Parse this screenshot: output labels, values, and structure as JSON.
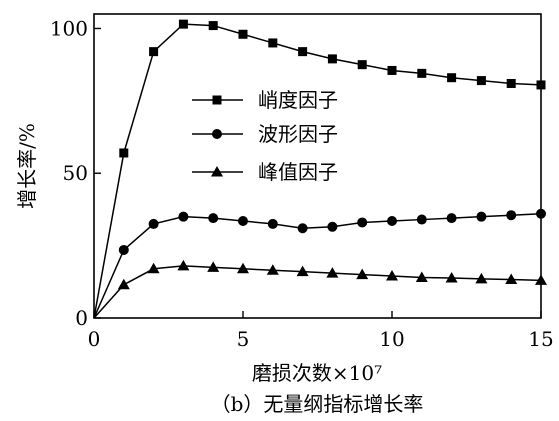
{
  "chart_data": {
    "type": "line",
    "caption": "（b）无量纲指标增长率",
    "xlabel": "磨损次数×10⁷",
    "ylabel": "增长率/%",
    "xlim": [
      0,
      15
    ],
    "ylim": [
      0,
      105
    ],
    "xticks": [
      "0",
      "5",
      "10",
      "15"
    ],
    "yticks": [
      "0",
      "50",
      "100"
    ],
    "legend_position": "center",
    "grid": false,
    "x": [
      0,
      1,
      2,
      3,
      4,
      5,
      6,
      7,
      8,
      9,
      10,
      11,
      12,
      13,
      14,
      15
    ],
    "series": [
      {
        "name": "峭度因子",
        "marker": "square",
        "values": [
          0,
          57,
          92,
          101.5,
          101,
          98,
          95,
          92,
          89.5,
          87.5,
          85.5,
          84.5,
          83,
          82,
          81,
          80.5
        ]
      },
      {
        "name": "波形因子",
        "marker": "circle",
        "values": [
          0,
          23.5,
          32.5,
          35,
          34.5,
          33.5,
          32.5,
          31,
          31.5,
          33,
          33.5,
          34,
          34.5,
          35,
          35.5,
          36
        ]
      },
      {
        "name": "峰值因子",
        "marker": "triangle",
        "values": [
          0,
          11.5,
          17,
          18,
          17.5,
          17,
          16.5,
          16,
          15.5,
          15,
          14.5,
          14,
          13.8,
          13.5,
          13.3,
          13
        ]
      }
    ]
  }
}
